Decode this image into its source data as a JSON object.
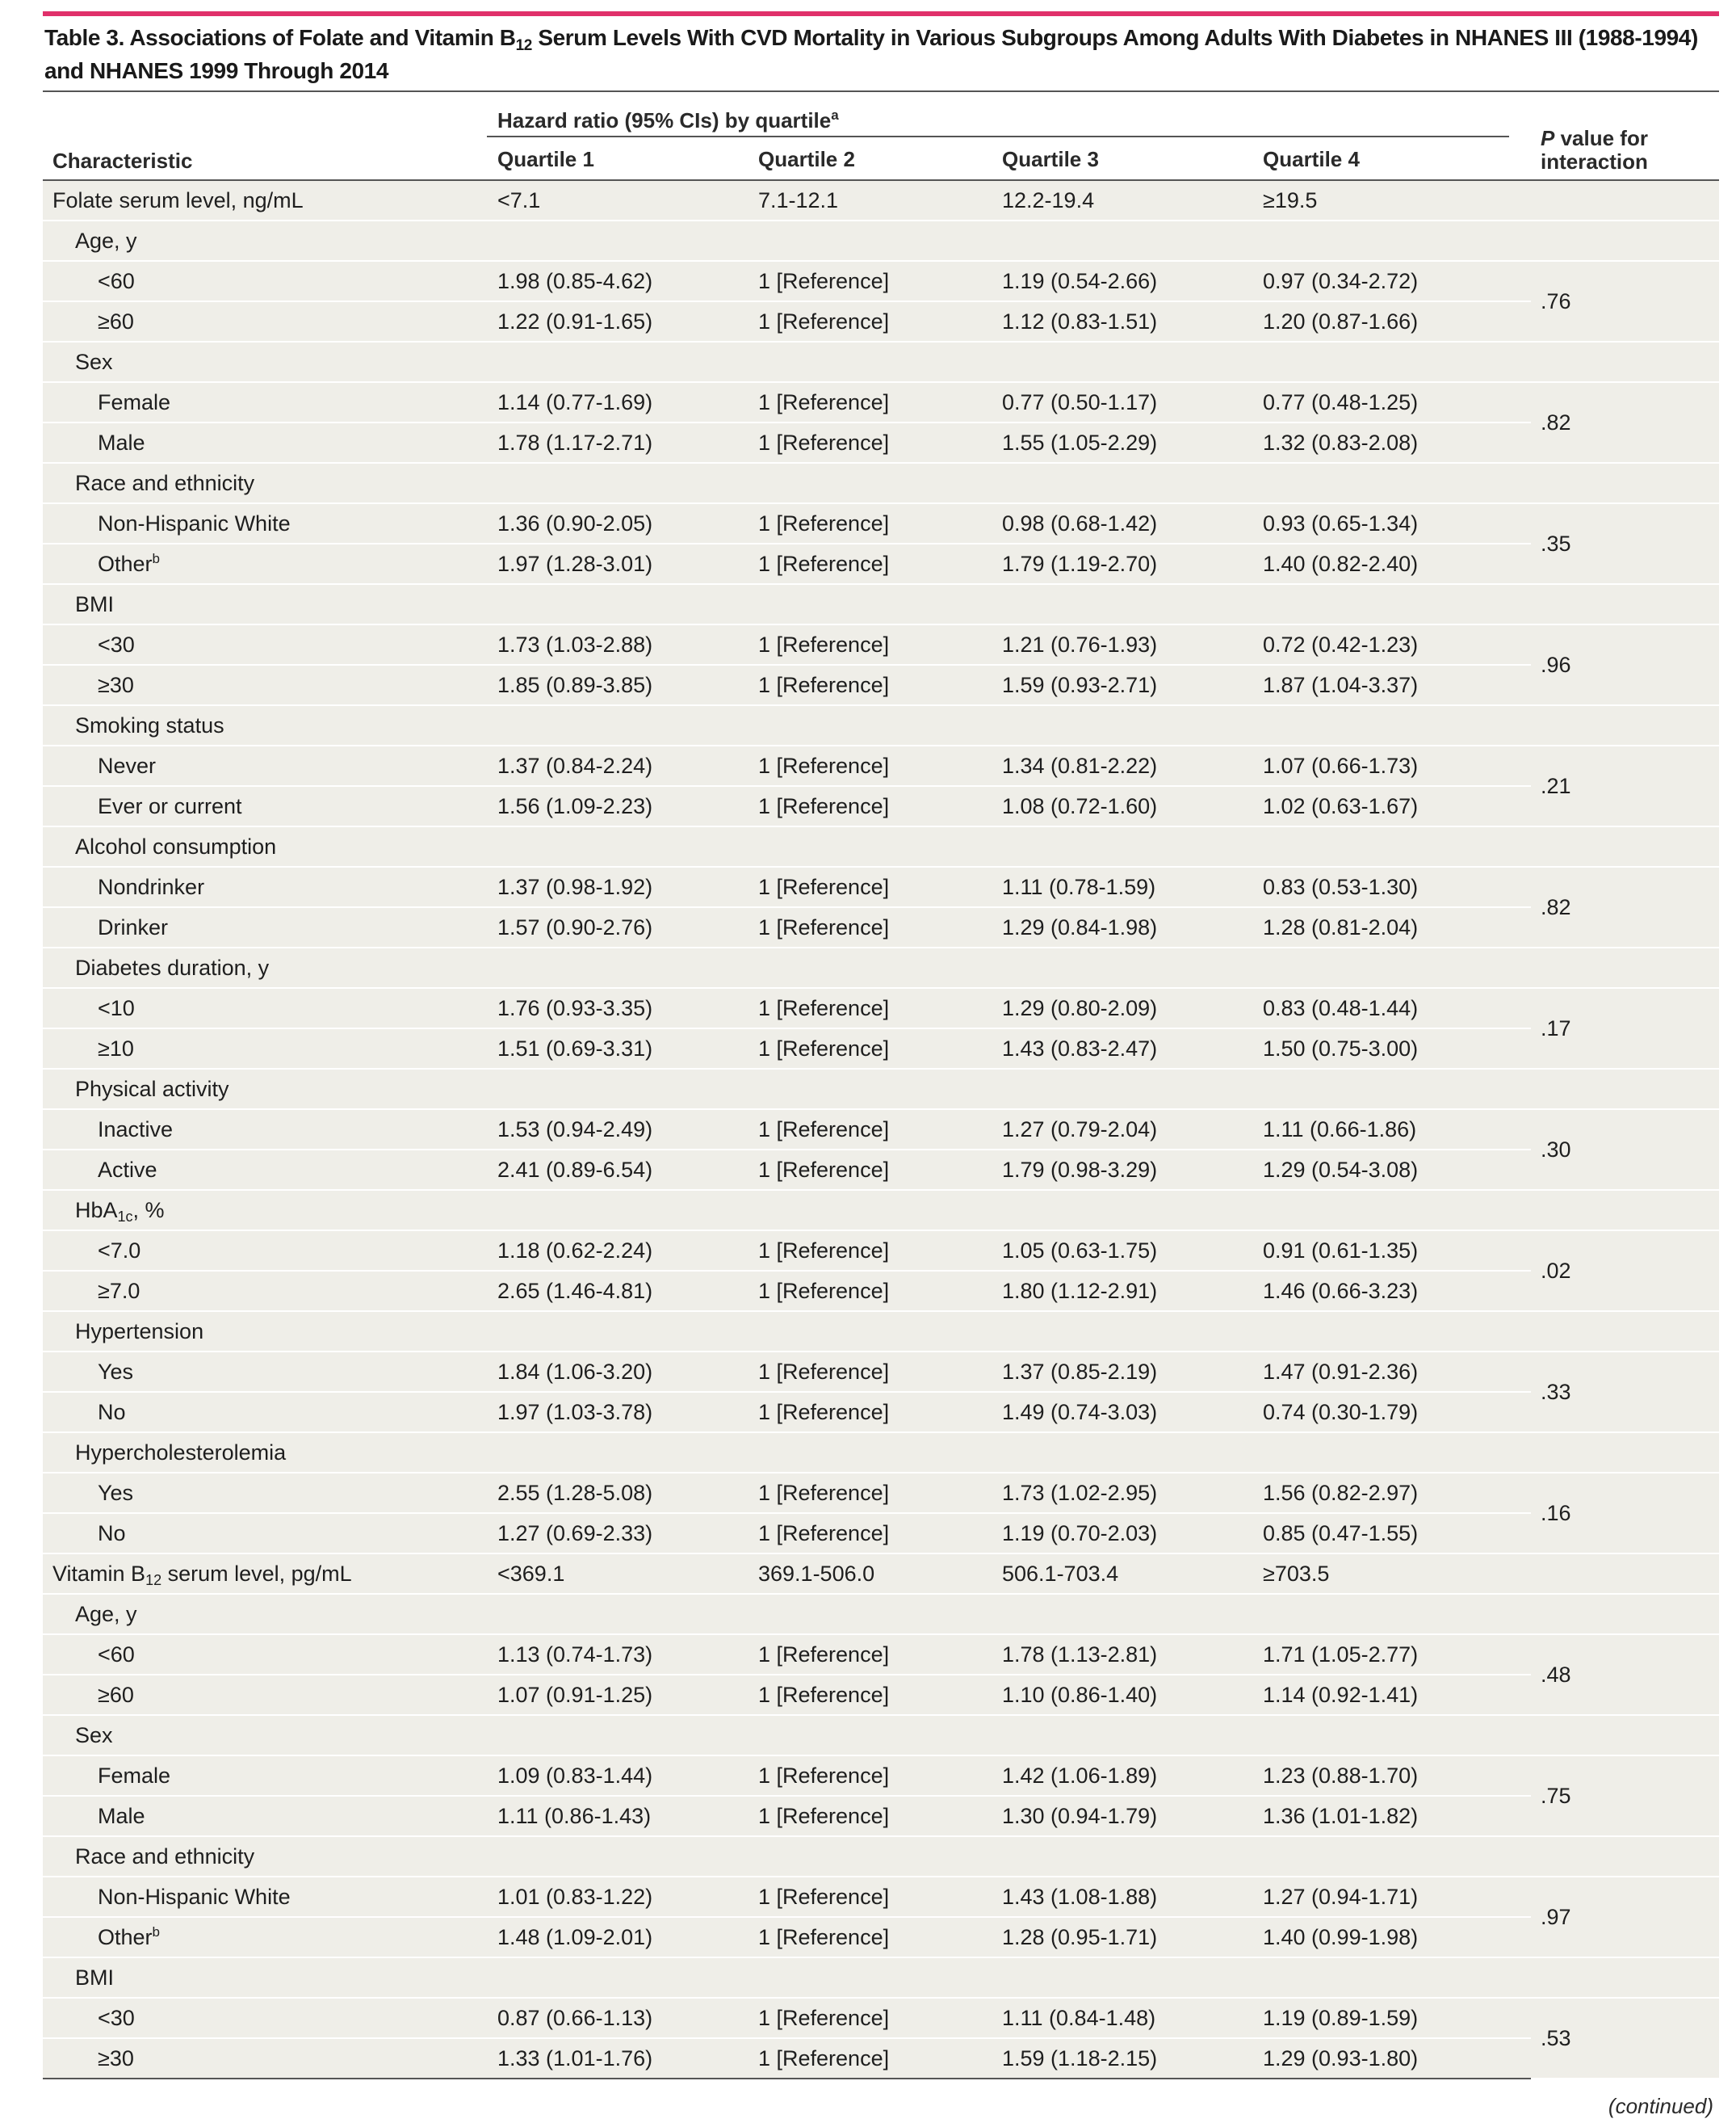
{
  "table": {
    "title_pre": "Table 3. Associations of Folate and Vitamin B",
    "title_sub": "12",
    "title_post": " Serum Levels With CVD Mortality in Various Subgroups Among Adults With Diabetes in NHANES III (1988-1994)",
    "title_line2": "and NHANES 1999 Through 2014",
    "header": {
      "characteristic": "Characteristic",
      "group": "Hazard ratio (95% CIs) by quartile",
      "group_note": "a",
      "quartiles": [
        "Quartile 1",
        "Quartile 2",
        "Quartile 3",
        "Quartile 4"
      ],
      "p_line1": "P",
      "p_line1_rest": " value for",
      "p_line2": "interaction"
    },
    "rows": [
      {
        "type": "main",
        "label": "Folate serum level, ng/mL",
        "q": [
          "<7.1",
          "7.1-12.1",
          "12.2-19.4",
          "≥19.5"
        ]
      },
      {
        "type": "group",
        "label": "Age, y"
      },
      {
        "type": "item",
        "label": "<60",
        "q": [
          "1.98 (0.85-4.62)",
          "1 [Reference]",
          "1.19 (0.54-2.66)",
          "0.97 (0.34-2.72)"
        ],
        "p": ".76"
      },
      {
        "type": "item",
        "label": "≥60",
        "q": [
          "1.22 (0.91-1.65)",
          "1 [Reference]",
          "1.12 (0.83-1.51)",
          "1.20 (0.87-1.66)"
        ]
      },
      {
        "type": "group",
        "label": "Sex"
      },
      {
        "type": "item",
        "label": "Female",
        "q": [
          "1.14 (0.77-1.69)",
          "1 [Reference]",
          "0.77 (0.50-1.17)",
          "0.77 (0.48-1.25)"
        ],
        "p": ".82"
      },
      {
        "type": "item",
        "label": "Male",
        "q": [
          "1.78 (1.17-2.71)",
          "1 [Reference]",
          "1.55 (1.05-2.29)",
          "1.32 (0.83-2.08)"
        ]
      },
      {
        "type": "group",
        "label": "Race and ethnicity"
      },
      {
        "type": "item",
        "label": "Non-Hispanic White",
        "q": [
          "1.36 (0.90-2.05)",
          "1 [Reference]",
          "0.98 (0.68-1.42)",
          "0.93 (0.65-1.34)"
        ],
        "p": ".35"
      },
      {
        "type": "item",
        "label": "Other",
        "sup": "b",
        "q": [
          "1.97 (1.28-3.01)",
          "1 [Reference]",
          "1.79 (1.19-2.70)",
          "1.40 (0.82-2.40)"
        ]
      },
      {
        "type": "group",
        "label": "BMI"
      },
      {
        "type": "item",
        "label": "<30",
        "q": [
          "1.73 (1.03-2.88)",
          "1 [Reference]",
          "1.21 (0.76-1.93)",
          "0.72 (0.42-1.23)"
        ],
        "p": ".96"
      },
      {
        "type": "item",
        "label": "≥30",
        "q": [
          "1.85 (0.89-3.85)",
          "1 [Reference]",
          "1.59 (0.93-2.71)",
          "1.87 (1.04-3.37)"
        ]
      },
      {
        "type": "group",
        "label": "Smoking status"
      },
      {
        "type": "item",
        "label": "Never",
        "q": [
          "1.37 (0.84-2.24)",
          "1 [Reference]",
          "1.34 (0.81-2.22)",
          "1.07 (0.66-1.73)"
        ],
        "p": ".21"
      },
      {
        "type": "item",
        "label": "Ever or current",
        "q": [
          "1.56 (1.09-2.23)",
          "1 [Reference]",
          "1.08 (0.72-1.60)",
          "1.02 (0.63-1.67)"
        ]
      },
      {
        "type": "group",
        "label": "Alcohol consumption"
      },
      {
        "type": "item",
        "label": "Nondrinker",
        "q": [
          "1.37 (0.98-1.92)",
          "1 [Reference]",
          "1.11 (0.78-1.59)",
          "0.83 (0.53-1.30)"
        ],
        "p": ".82"
      },
      {
        "type": "item",
        "label": "Drinker",
        "q": [
          "1.57 (0.90-2.76)",
          "1 [Reference]",
          "1.29 (0.84-1.98)",
          "1.28 (0.81-2.04)"
        ]
      },
      {
        "type": "group",
        "label": "Diabetes duration, y"
      },
      {
        "type": "item",
        "label": "<10",
        "q": [
          "1.76 (0.93-3.35)",
          "1 [Reference]",
          "1.29 (0.80-2.09)",
          "0.83 (0.48-1.44)"
        ],
        "p": ".17"
      },
      {
        "type": "item",
        "label": "≥10",
        "q": [
          "1.51 (0.69-3.31)",
          "1 [Reference]",
          "1.43 (0.83-2.47)",
          "1.50 (0.75-3.00)"
        ]
      },
      {
        "type": "group",
        "label": "Physical activity"
      },
      {
        "type": "item",
        "label": "Inactive",
        "q": [
          "1.53 (0.94-2.49)",
          "1 [Reference]",
          "1.27 (0.79-2.04)",
          "1.11 (0.66-1.86)"
        ],
        "p": ".30"
      },
      {
        "type": "item",
        "label": "Active",
        "q": [
          "2.41 (0.89-6.54)",
          "1 [Reference]",
          "1.79 (0.98-3.29)",
          "1.29 (0.54-3.08)"
        ]
      },
      {
        "type": "group",
        "label": "HbA",
        "sub": "1c",
        "label_post": ", %"
      },
      {
        "type": "item",
        "label": "<7.0",
        "q": [
          "1.18 (0.62-2.24)",
          "1 [Reference]",
          "1.05 (0.63-1.75)",
          "0.91 (0.61-1.35)"
        ],
        "p": ".02"
      },
      {
        "type": "item",
        "label": "≥7.0",
        "q": [
          "2.65 (1.46-4.81)",
          "1 [Reference]",
          "1.80 (1.12-2.91)",
          "1.46 (0.66-3.23)"
        ]
      },
      {
        "type": "group",
        "label": "Hypertension"
      },
      {
        "type": "item",
        "label": "Yes",
        "q": [
          "1.84 (1.06-3.20)",
          "1 [Reference]",
          "1.37 (0.85-2.19)",
          "1.47 (0.91-2.36)"
        ],
        "p": ".33"
      },
      {
        "type": "item",
        "label": "No",
        "q": [
          "1.97 (1.03-3.78)",
          "1 [Reference]",
          "1.49 (0.74-3.03)",
          "0.74 (0.30-1.79)"
        ]
      },
      {
        "type": "group",
        "label": "Hypercholesterolemia"
      },
      {
        "type": "item",
        "label": "Yes",
        "q": [
          "2.55 (1.28-5.08)",
          "1 [Reference]",
          "1.73 (1.02-2.95)",
          "1.56 (0.82-2.97)"
        ],
        "p": ".16"
      },
      {
        "type": "item",
        "label": "No",
        "q": [
          "1.27 (0.69-2.33)",
          "1 [Reference]",
          "1.19 (0.70-2.03)",
          "0.85 (0.47-1.55)"
        ]
      },
      {
        "type": "main",
        "label": "Vitamin B",
        "sub": "12",
        "label_post": " serum level, pg/mL",
        "q": [
          "<369.1",
          "369.1-506.0",
          "506.1-703.4",
          "≥703.5"
        ]
      },
      {
        "type": "group",
        "label": "Age, y"
      },
      {
        "type": "item",
        "label": "<60",
        "q": [
          "1.13 (0.74-1.73)",
          "1 [Reference]",
          "1.78 (1.13-2.81)",
          "1.71 (1.05-2.77)"
        ],
        "p": ".48"
      },
      {
        "type": "item",
        "label": "≥60",
        "q": [
          "1.07 (0.91-1.25)",
          "1 [Reference]",
          "1.10 (0.86-1.40)",
          "1.14 (0.92-1.41)"
        ]
      },
      {
        "type": "group",
        "label": "Sex"
      },
      {
        "type": "item",
        "label": "Female",
        "q": [
          "1.09 (0.83-1.44)",
          "1 [Reference]",
          "1.42 (1.06-1.89)",
          "1.23 (0.88-1.70)"
        ],
        "p": ".75"
      },
      {
        "type": "item",
        "label": "Male",
        "q": [
          "1.11 (0.86-1.43)",
          "1 [Reference]",
          "1.30 (0.94-1.79)",
          "1.36 (1.01-1.82)"
        ]
      },
      {
        "type": "group",
        "label": "Race and ethnicity"
      },
      {
        "type": "item",
        "label": "Non-Hispanic White",
        "q": [
          "1.01 (0.83-1.22)",
          "1 [Reference]",
          "1.43 (1.08-1.88)",
          "1.27 (0.94-1.71)"
        ],
        "p": ".97"
      },
      {
        "type": "item",
        "label": "Other",
        "sup": "b",
        "q": [
          "1.48 (1.09-2.01)",
          "1 [Reference]",
          "1.28 (0.95-1.71)",
          "1.40 (0.99-1.98)"
        ]
      },
      {
        "type": "group",
        "label": "BMI"
      },
      {
        "type": "item",
        "label": "<30",
        "q": [
          "0.87 (0.66-1.13)",
          "1 [Reference]",
          "1.11 (0.84-1.48)",
          "1.19 (0.89-1.59)"
        ],
        "p": ".53"
      },
      {
        "type": "item",
        "label": "≥30",
        "q": [
          "1.33 (1.01-1.76)",
          "1 [Reference]",
          "1.59 (1.18-2.15)",
          "1.29 (0.93-1.80)"
        ]
      }
    ],
    "continued": "(continued)"
  }
}
